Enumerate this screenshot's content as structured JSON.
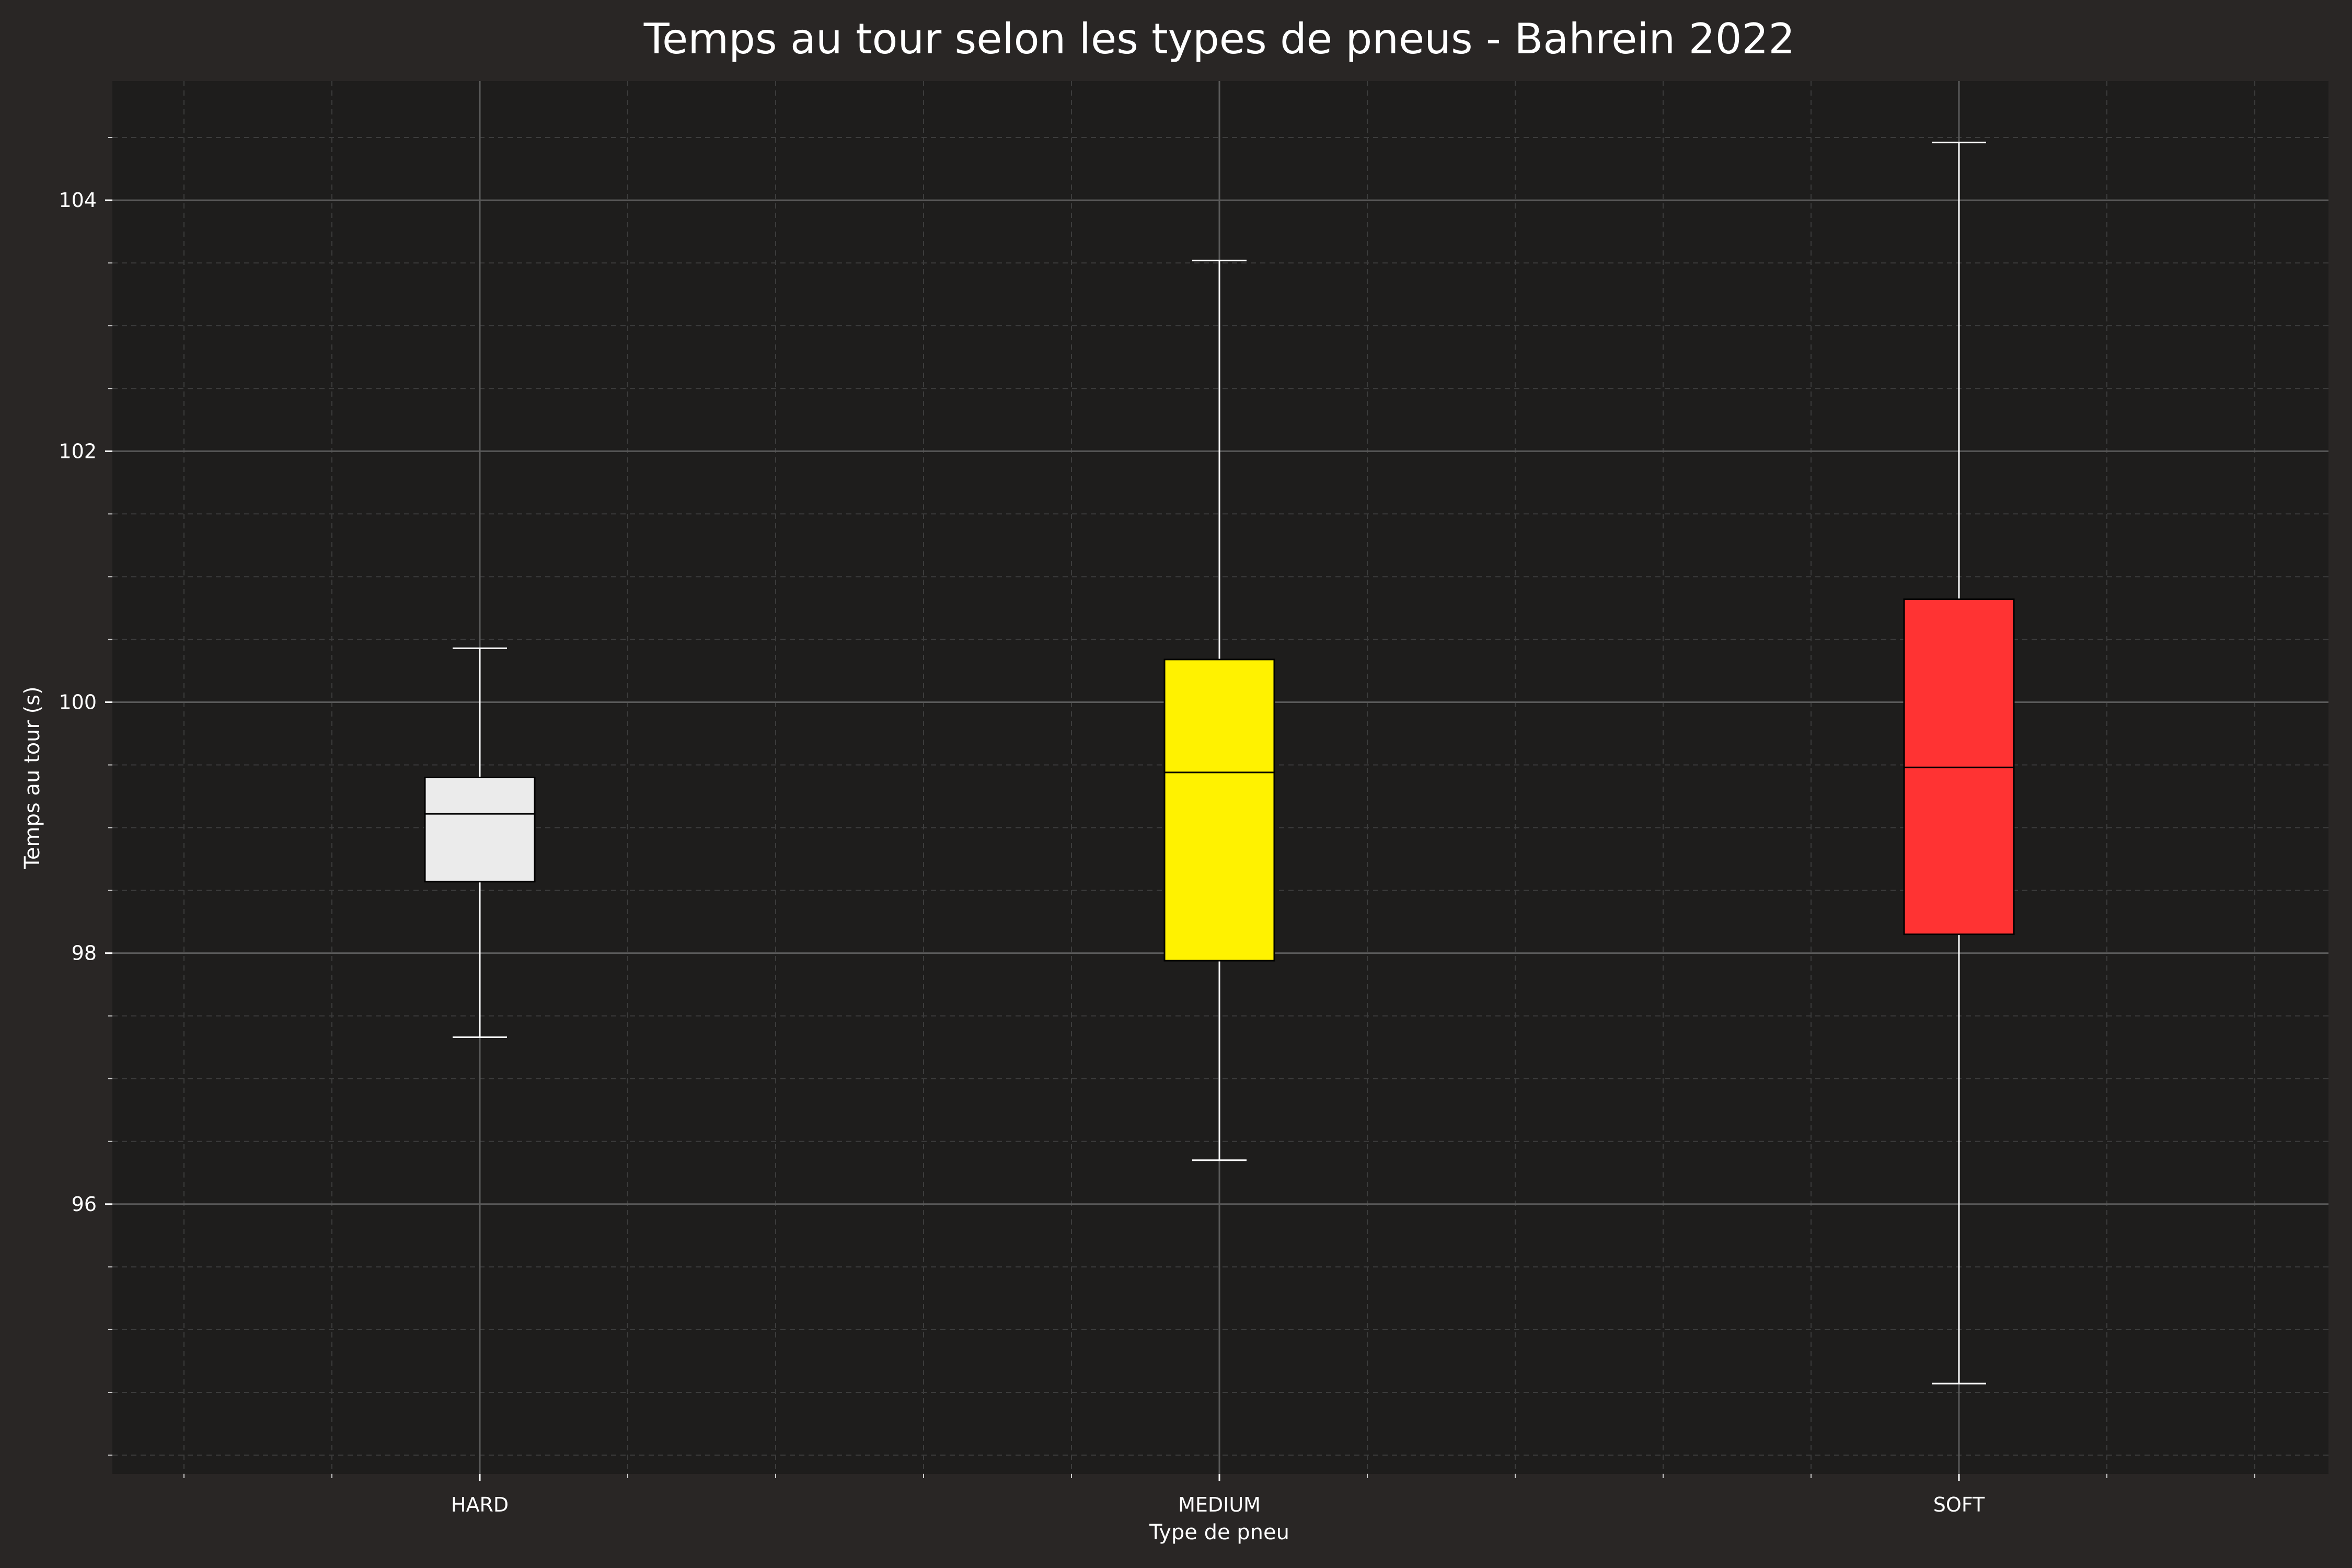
{
  "chart_data": {
    "type": "box",
    "title": "Temps au tour selon les types de pneus - Bahrein 2022",
    "xlabel": "Type de pneu",
    "ylabel": "Temps au tour (s)",
    "ylim": [
      93.85,
      104.95
    ],
    "yticks": [
      96,
      98,
      100,
      102,
      104
    ],
    "grid": true,
    "categories": [
      "HARD",
      "MEDIUM",
      "SOFT"
    ],
    "boxes": [
      {
        "category": "HARD",
        "whisker_low": 97.33,
        "q1": 98.57,
        "median": 99.11,
        "q3": 99.4,
        "whisker_high": 100.43,
        "color": "#ebebeb"
      },
      {
        "category": "MEDIUM",
        "whisker_low": 96.35,
        "q1": 97.94,
        "median": 99.44,
        "q3": 100.34,
        "whisker_high": 103.52,
        "color": "#fff200"
      },
      {
        "category": "SOFT",
        "whisker_low": 94.57,
        "q1": 98.15,
        "median": 99.48,
        "q3": 100.82,
        "whisker_high": 104.46,
        "color": "#ff3333"
      }
    ],
    "colors": {
      "figure_bg": "#292625",
      "axes_bg": "#1e1d1c",
      "grid_major": "#5a5a5a",
      "grid_minor": "#3c3c3c",
      "text": "#ffffff"
    }
  }
}
